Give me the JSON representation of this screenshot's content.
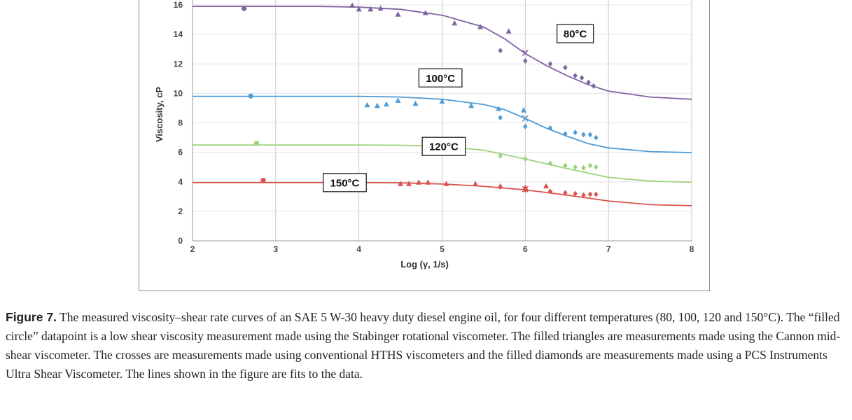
{
  "chart_data": {
    "type": "scatter",
    "title": "",
    "xlabel": "Log (γ, 1/s)",
    "ylabel": "Viscosity, cP",
    "xlim": [
      2,
      8
    ],
    "ylim": [
      0,
      16
    ],
    "x_ticks": [
      "2",
      "3",
      "4",
      "5",
      "6",
      "7",
      "8"
    ],
    "y_ticks": [
      "0",
      "2",
      "4",
      "6",
      "8",
      "10",
      "12",
      "14",
      "16"
    ],
    "grid": "vertical",
    "series": [
      {
        "name": "80°C",
        "color": "#8064a2",
        "fit": [
          [
            2,
            15.9
          ],
          [
            3.5,
            15.9
          ],
          [
            4,
            15.85
          ],
          [
            4.5,
            15.7
          ],
          [
            5,
            15.3
          ],
          [
            5.5,
            14.5
          ],
          [
            5.75,
            13.7
          ],
          [
            6,
            12.7
          ],
          [
            6.25,
            11.9
          ],
          [
            6.5,
            11.2
          ],
          [
            6.75,
            10.6
          ],
          [
            7,
            10.15
          ],
          [
            7.5,
            9.75
          ],
          [
            8,
            9.6
          ]
        ],
        "circles": [
          [
            2.62,
            15.75
          ]
        ],
        "triangles": [
          [
            3.92,
            15.95
          ],
          [
            4.0,
            15.7
          ],
          [
            4.14,
            15.7
          ],
          [
            4.26,
            15.75
          ],
          [
            4.47,
            15.35
          ],
          [
            4.8,
            15.45
          ],
          [
            5.15,
            14.75
          ],
          [
            5.46,
            14.5
          ],
          [
            5.8,
            14.2
          ]
        ],
        "crosses": [
          [
            6.0,
            12.75
          ]
        ],
        "diamonds": [
          [
            5.7,
            12.9
          ],
          [
            6.0,
            12.2
          ],
          [
            6.3,
            12.0
          ],
          [
            6.48,
            11.75
          ],
          [
            6.6,
            11.2
          ],
          [
            6.68,
            11.05
          ],
          [
            6.76,
            10.75
          ],
          [
            6.82,
            10.5
          ]
        ]
      },
      {
        "name": "100°C",
        "color": "#4f9bd5",
        "fit": [
          [
            2,
            9.8
          ],
          [
            4,
            9.8
          ],
          [
            4.5,
            9.75
          ],
          [
            5,
            9.6
          ],
          [
            5.5,
            9.25
          ],
          [
            5.75,
            8.9
          ],
          [
            6,
            8.3
          ],
          [
            6.25,
            7.65
          ],
          [
            6.5,
            7.1
          ],
          [
            6.75,
            6.6
          ],
          [
            7,
            6.3
          ],
          [
            7.5,
            6.05
          ],
          [
            8,
            5.98
          ]
        ],
        "circles": [
          [
            2.7,
            9.82
          ]
        ],
        "triangles": [
          [
            4.1,
            9.2
          ],
          [
            4.22,
            9.15
          ],
          [
            4.33,
            9.25
          ],
          [
            4.47,
            9.5
          ],
          [
            4.68,
            9.3
          ],
          [
            5.0,
            9.45
          ],
          [
            5.35,
            9.15
          ],
          [
            5.68,
            8.95
          ],
          [
            5.98,
            8.85
          ]
        ],
        "crosses": [
          [
            6.0,
            8.3
          ]
        ],
        "diamonds": [
          [
            5.7,
            8.35
          ],
          [
            6.0,
            7.75
          ],
          [
            6.3,
            7.65
          ],
          [
            6.48,
            7.25
          ],
          [
            6.6,
            7.35
          ],
          [
            6.7,
            7.2
          ],
          [
            6.78,
            7.2
          ],
          [
            6.85,
            7.0
          ]
        ]
      },
      {
        "name": "120°C",
        "color": "#9bd47a",
        "fit": [
          [
            2,
            6.5
          ],
          [
            4,
            6.5
          ],
          [
            4.5,
            6.48
          ],
          [
            5,
            6.4
          ],
          [
            5.5,
            6.15
          ],
          [
            6,
            5.55
          ],
          [
            6.5,
            4.9
          ],
          [
            7,
            4.3
          ],
          [
            7.5,
            4.05
          ],
          [
            8,
            3.97
          ]
        ],
        "circles": [
          [
            2.77,
            6.62
          ]
        ],
        "triangles": [],
        "crosses": [],
        "diamonds": [
          [
            5.7,
            5.75
          ],
          [
            6.0,
            5.55
          ],
          [
            6.3,
            5.25
          ],
          [
            6.48,
            5.1
          ],
          [
            6.6,
            5.0
          ],
          [
            6.7,
            4.95
          ],
          [
            6.78,
            5.1
          ],
          [
            6.85,
            5.0
          ]
        ]
      },
      {
        "name": "150°C",
        "color": "#d9534f",
        "fit": [
          [
            2,
            3.95
          ],
          [
            4,
            3.95
          ],
          [
            4.5,
            3.93
          ],
          [
            5,
            3.85
          ],
          [
            5.5,
            3.7
          ],
          [
            6,
            3.45
          ],
          [
            6.5,
            3.1
          ],
          [
            7,
            2.7
          ],
          [
            7.5,
            2.45
          ],
          [
            8,
            2.38
          ]
        ],
        "circles": [
          [
            2.85,
            4.1
          ]
        ],
        "triangles": [
          [
            4.5,
            3.85
          ],
          [
            4.6,
            3.85
          ],
          [
            4.72,
            3.95
          ],
          [
            4.83,
            3.95
          ],
          [
            5.05,
            3.85
          ],
          [
            5.4,
            3.85
          ],
          [
            5.7,
            3.7
          ],
          [
            6.0,
            3.6
          ],
          [
            6.25,
            3.7
          ]
        ],
        "crosses": [
          [
            6.0,
            3.5
          ]
        ],
        "diamonds": [
          [
            5.7,
            3.65
          ],
          [
            6.0,
            3.45
          ],
          [
            6.3,
            3.35
          ],
          [
            6.48,
            3.25
          ],
          [
            6.6,
            3.2
          ],
          [
            6.7,
            3.1
          ],
          [
            6.78,
            3.15
          ],
          [
            6.85,
            3.15
          ]
        ]
      }
    ],
    "annotations": [
      {
        "text": "80°C",
        "x": 6.6,
        "y": 14.05
      },
      {
        "text": "100°C",
        "x": 4.98,
        "y": 11.05
      },
      {
        "text": "120°C",
        "x": 5.02,
        "y": 6.4
      },
      {
        "text": "150°C",
        "x": 3.83,
        "y": 3.95
      }
    ]
  },
  "caption": {
    "label": "Figure 7.",
    "text": "The measured viscosity–shear rate curves of an SAE 5 W-30 heavy duty diesel engine oil, for four different temperatures (80, 100, 120 and 150°C). The “filled circle” datapoint is a low shear viscosity measurement made using the Stabinger rotational viscometer. The filled triangles are measurements made using the Cannon mid-shear viscometer. The crosses are measurements made using conventional HTHS viscometers and the filled diamonds are measurements made using a PCS Instruments Ultra Shear Viscometer. The lines shown in the figure are fits to the data."
  }
}
